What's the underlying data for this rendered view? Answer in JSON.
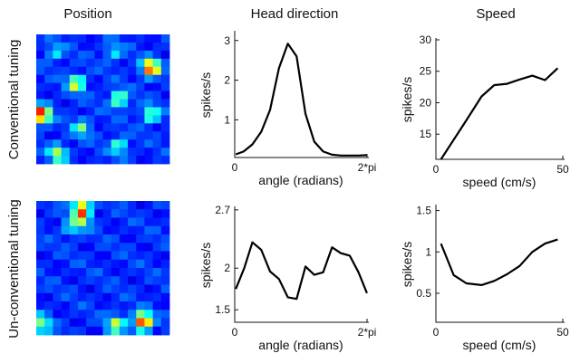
{
  "column_titles": [
    "Position",
    "Head direction",
    "Speed"
  ],
  "row_labels": [
    "Conventional tuning",
    "Un-conventional tuning"
  ],
  "chart_data": [
    {
      "type": "heatmap",
      "row": 0,
      "column": 0,
      "grid_size": [
        16,
        16
      ],
      "colormap": "jet",
      "hotspots": [
        {
          "x": 0.14,
          "y": 0.14,
          "peak": 0.35
        },
        {
          "x": 0.58,
          "y": 0.14,
          "peak": 0.35
        },
        {
          "x": 0.86,
          "y": 0.26,
          "peak": 0.85
        },
        {
          "x": 0.3,
          "y": 0.38,
          "peak": 0.6
        },
        {
          "x": 0.62,
          "y": 0.5,
          "peak": 0.55
        },
        {
          "x": 0.04,
          "y": 0.62,
          "peak": 0.9
        },
        {
          "x": 0.86,
          "y": 0.62,
          "peak": 0.5
        },
        {
          "x": 0.34,
          "y": 0.72,
          "peak": 0.45
        },
        {
          "x": 0.62,
          "y": 0.86,
          "peak": 0.45
        },
        {
          "x": 0.16,
          "y": 0.92,
          "peak": 0.55
        }
      ]
    },
    {
      "type": "line",
      "row": 0,
      "column": 1,
      "xlabel": "angle (radians)",
      "ylabel": "spikes/s",
      "xticks": [
        {
          "v": 0,
          "label": "0"
        },
        {
          "v": 6.2832,
          "label": "2*pi"
        }
      ],
      "yticks": [
        {
          "v": 1,
          "label": "1"
        },
        {
          "v": 2,
          "label": "2"
        },
        {
          "v": 3,
          "label": "3"
        }
      ],
      "xlim": [
        0,
        6.2832
      ],
      "ylim": [
        0.05,
        3.2
      ],
      "series": [
        {
          "x": [
            0.05,
            0.42,
            0.84,
            1.26,
            1.68,
            2.1,
            2.52,
            2.94,
            3.36,
            3.78,
            4.2,
            4.62,
            5.04,
            5.46,
            5.88,
            6.28
          ],
          "y": [
            0.13,
            0.2,
            0.38,
            0.7,
            1.25,
            2.3,
            2.92,
            2.6,
            1.15,
            0.45,
            0.2,
            0.12,
            0.1,
            0.1,
            0.1,
            0.11
          ]
        }
      ]
    },
    {
      "type": "line",
      "row": 0,
      "column": 2,
      "xlabel": "speed (cm/s)",
      "ylabel": "spikes/s",
      "xticks": [
        {
          "v": 0,
          "label": "0"
        },
        {
          "v": 50,
          "label": "50"
        }
      ],
      "yticks": [
        {
          "v": 15,
          "label": "15"
        },
        {
          "v": 20,
          "label": "20"
        },
        {
          "v": 25,
          "label": "25"
        },
        {
          "v": 30,
          "label": "30"
        }
      ],
      "xlim": [
        0,
        50
      ],
      "ylim": [
        11,
        30
      ],
      "series": [
        {
          "x": [
            2,
            12,
            18,
            23,
            28,
            33,
            38,
            43,
            48
          ],
          "y": [
            11,
            17.2,
            21,
            22.8,
            23,
            23.7,
            24.3,
            23.6,
            25.5
          ]
        }
      ]
    },
    {
      "type": "heatmap",
      "row": 1,
      "column": 0,
      "grid_size": [
        16,
        16
      ],
      "colormap": "jet",
      "hotspots": [
        {
          "x": 0.34,
          "y": 0.06,
          "peak": 0.75
        },
        {
          "x": 0.34,
          "y": 0.14,
          "peak": 0.45
        },
        {
          "x": 0.26,
          "y": 0.2,
          "peak": 0.35
        },
        {
          "x": 0.8,
          "y": 0.9,
          "peak": 0.9
        },
        {
          "x": 0.6,
          "y": 0.92,
          "peak": 0.55
        },
        {
          "x": 0.04,
          "y": 0.92,
          "peak": 0.5
        }
      ]
    },
    {
      "type": "line",
      "row": 1,
      "column": 1,
      "xlabel": "angle (radians)",
      "ylabel": "spikes/s",
      "xticks": [
        {
          "v": 0,
          "label": "0"
        },
        {
          "v": 6.2832,
          "label": "2*pi"
        }
      ],
      "yticks": [
        {
          "v": 1.5,
          "label": "1.5"
        },
        {
          "v": 2,
          "label": "2"
        },
        {
          "v": 2.7,
          "label": "2.7"
        }
      ],
      "xlim": [
        0,
        6.2832
      ],
      "ylim": [
        1.35,
        2.72
      ],
      "series": [
        {
          "x": [
            0.05,
            0.45,
            0.84,
            1.26,
            1.68,
            2.1,
            2.52,
            2.94,
            3.36,
            3.78,
            4.2,
            4.62,
            5.04,
            5.46,
            5.88,
            6.28
          ],
          "y": [
            1.75,
            2.0,
            2.31,
            2.22,
            1.96,
            1.87,
            1.65,
            1.63,
            2.02,
            1.92,
            1.95,
            2.25,
            2.18,
            2.15,
            1.95,
            1.7
          ]
        }
      ]
    },
    {
      "type": "line",
      "row": 1,
      "column": 2,
      "xlabel": "speed (cm/s)",
      "ylabel": "spikes/s",
      "xticks": [
        {
          "v": 0,
          "label": "0"
        },
        {
          "v": 50,
          "label": "50"
        }
      ],
      "yticks": [
        {
          "v": 0.5,
          "label": "0.5"
        },
        {
          "v": 1,
          "label": "1"
        },
        {
          "v": 1.5,
          "label": "1.5"
        }
      ],
      "xlim": [
        0,
        50
      ],
      "ylim": [
        0.15,
        1.55
      ],
      "series": [
        {
          "x": [
            2,
            7,
            12,
            18,
            23,
            28,
            33,
            38,
            43,
            48
          ],
          "y": [
            1.1,
            0.72,
            0.62,
            0.6,
            0.65,
            0.73,
            0.83,
            1.0,
            1.1,
            1.15
          ]
        }
      ]
    }
  ]
}
